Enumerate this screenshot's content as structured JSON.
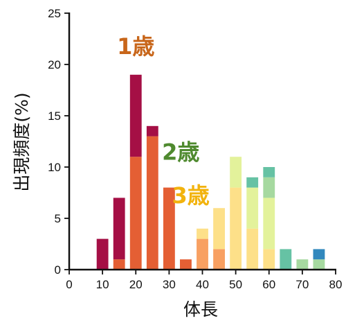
{
  "chart_data": {
    "type": "bar",
    "stacked": true,
    "title": "",
    "xlabel": "体長",
    "ylabel": "出現頻度(%)",
    "xlim": [
      0,
      80
    ],
    "ylim": [
      0,
      25
    ],
    "x_ticks": [
      0,
      10,
      20,
      30,
      40,
      50,
      60,
      70,
      80
    ],
    "y_ticks": [
      0,
      5,
      10,
      15,
      20,
      25
    ],
    "bin_width": 3.5,
    "grid": false,
    "legend": "none",
    "categories": [
      10,
      15,
      20,
      25,
      30,
      35,
      40,
      45,
      50,
      55,
      60,
      65,
      70,
      75
    ],
    "series": [
      {
        "key": "s1",
        "color": "#e45f34",
        "values": [
          0,
          1,
          11,
          13,
          8,
          1,
          0,
          0,
          0,
          0,
          0,
          0,
          0,
          0
        ]
      },
      {
        "key": "s2",
        "color": "#a50f45",
        "values": [
          3,
          6,
          8,
          1,
          0,
          0,
          0,
          0,
          0,
          0,
          0,
          0,
          0,
          0
        ]
      },
      {
        "key": "s3",
        "color": "#f8a062",
        "values": [
          0,
          0,
          0,
          0,
          0,
          0,
          3,
          2,
          0,
          0,
          0,
          0,
          0,
          0
        ]
      },
      {
        "key": "s4",
        "color": "#fde089",
        "values": [
          0,
          0,
          0,
          0,
          0,
          0,
          1,
          4,
          8,
          4,
          2,
          0,
          0,
          0
        ]
      },
      {
        "key": "s5",
        "color": "#e3f29b",
        "values": [
          0,
          0,
          0,
          0,
          0,
          0,
          0,
          0,
          3,
          4,
          5,
          0,
          0,
          0
        ]
      },
      {
        "key": "s6",
        "color": "#a6d9a0",
        "values": [
          0,
          0,
          0,
          0,
          0,
          0,
          0,
          0,
          0,
          0,
          2,
          0,
          1,
          1
        ]
      },
      {
        "key": "s7",
        "color": "#66c2a4",
        "values": [
          0,
          0,
          0,
          0,
          0,
          0,
          0,
          0,
          0,
          1,
          1,
          2,
          0,
          0
        ]
      },
      {
        "key": "s8",
        "color": "#3288bd",
        "values": [
          0,
          0,
          0,
          0,
          0,
          0,
          0,
          0,
          0,
          0,
          0,
          0,
          0,
          1
        ]
      }
    ],
    "annotations": [
      {
        "text": "1歳",
        "x": 20,
        "y": 21,
        "color": "#c8661a"
      },
      {
        "text": "2歳",
        "x": 33.5,
        "y": 10.7,
        "color": "#4f8a2f"
      },
      {
        "text": "3歳",
        "x": 36.5,
        "y": 6.5,
        "color": "#f2b30e"
      }
    ]
  }
}
